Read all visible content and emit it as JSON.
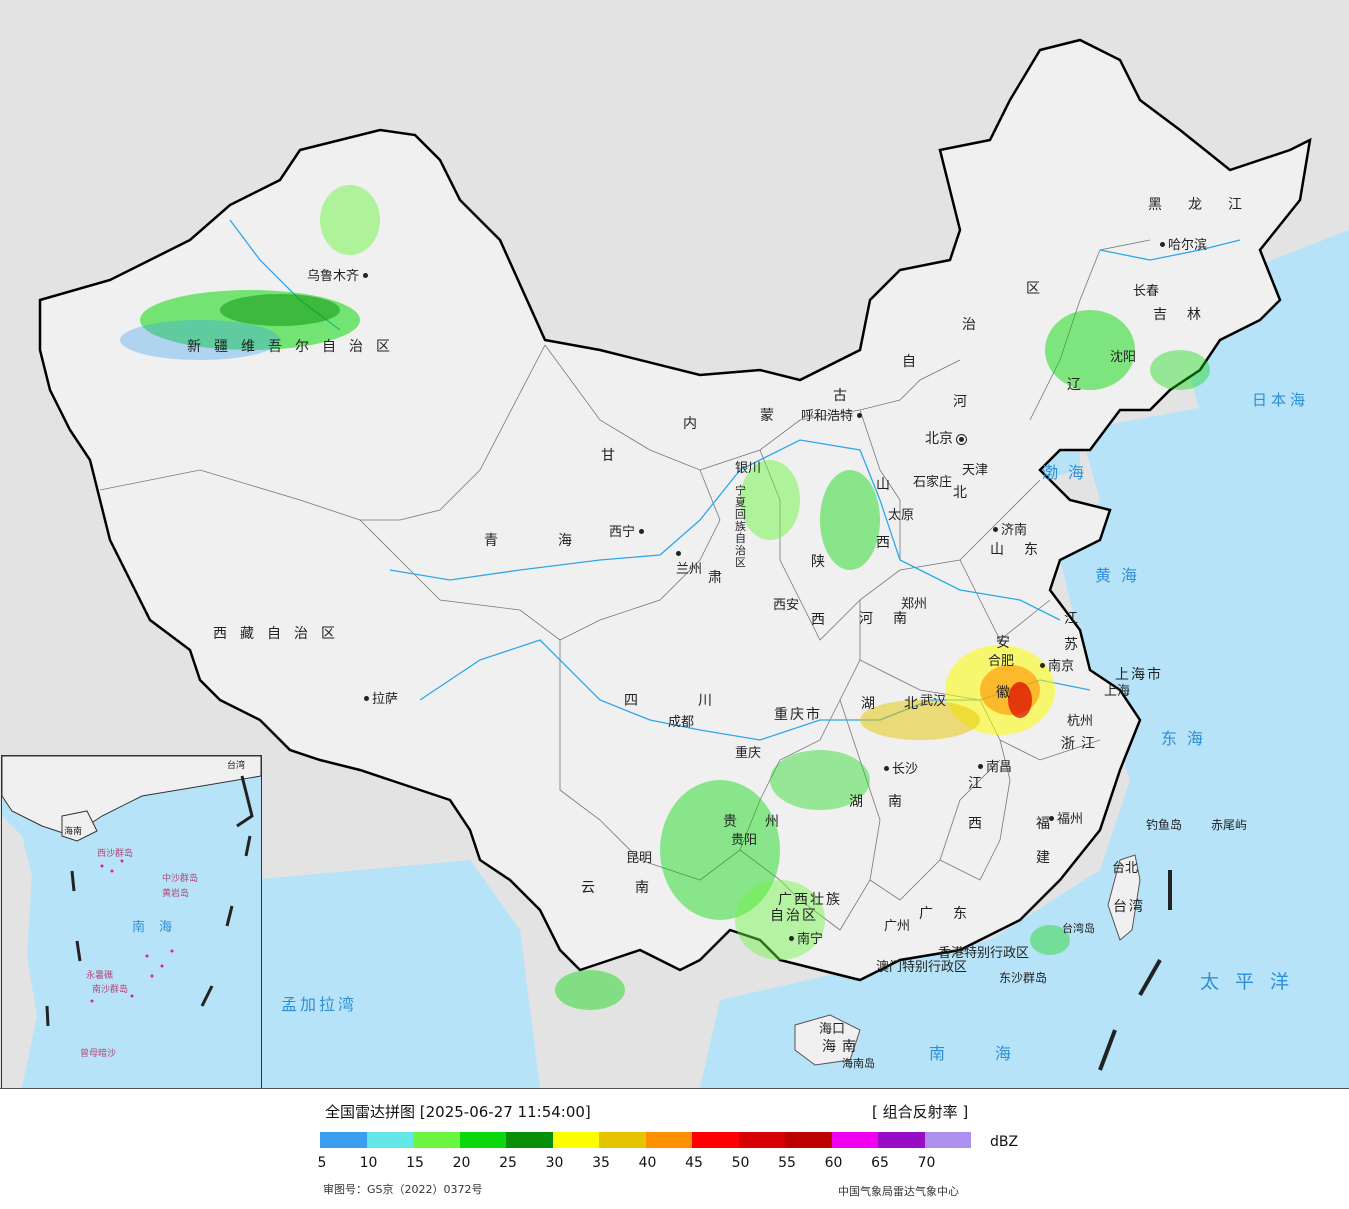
{
  "title": "全国雷达拼图 [2025-06-27 11:54:00]",
  "product": "[ 组合反射率 ]",
  "unit": "dBZ",
  "legend": {
    "colors": [
      "#3a9ef0",
      "#63e7ea",
      "#6cf541",
      "#0cd80c",
      "#079007",
      "#fdfd02",
      "#e6c400",
      "#fd8f00",
      "#fe0000",
      "#d80000",
      "#bb0000",
      "#f200f2",
      "#980cc6",
      "#ad8fef"
    ],
    "ticks": [
      "5",
      "10",
      "15",
      "20",
      "25",
      "30",
      "35",
      "40",
      "45",
      "50",
      "55",
      "60",
      "65",
      "70"
    ]
  },
  "review_number": "审图号：GS京（2022）0372号",
  "source": "中国气象局雷达气象中心",
  "colors": {
    "land": "#f0f0f0",
    "ocean": "#b6e3f7",
    "foreign": "#e3e3e3",
    "border": "#000000",
    "river": "#2ea7ea"
  },
  "provinces": {
    "xinjiang": "新疆维吾尔自治区",
    "xizang": "西藏自治区",
    "qinghai": "青海",
    "gansu": "甘",
    "neimenggu_1": "内",
    "neimenggu_2": "蒙",
    "neimenggu_3": "古",
    "neimenggu_4": "自",
    "neimenggu_5": "治",
    "neimenggu_6": "区",
    "heilongjiang": "黑龙江",
    "jilin": "吉林",
    "liaoning": "辽",
    "hebei_1": "河",
    "hebei_2": "北",
    "shanxi_1": "山",
    "shanxi_2": "西",
    "shaanxi_1": "陕",
    "shaanxi_2": "西",
    "shandong": "山东",
    "henan": "河南",
    "jiangsu_1": "江",
    "jiangsu_2": "苏",
    "anhui_1": "安",
    "anhui_2": "徽",
    "hubei_1": "湖",
    "hubei_2": "北",
    "sichuan": "四川",
    "chongqing": "重庆市",
    "guizhou_1": "贵",
    "guizhou_2": "州",
    "hunan_1": "湖",
    "hunan_2": "南",
    "jiangxi_1": "江",
    "jiangxi_2": "西",
    "zhejiang": "浙江",
    "fujian_1": "福",
    "fujian_2": "建",
    "yunnan": "云南",
    "guangxi_1": "广西壮族",
    "guangxi_2": "自治区",
    "guangdong": "广东",
    "hainan": "海南",
    "taiwan": "台湾",
    "ningxia": "宁夏回族自治区",
    "shanghai": "上海市",
    "tianjin": "天津",
    "gansu2": "肃"
  },
  "cities": {
    "urumqi": "乌鲁木齐",
    "lhasa": "拉萨",
    "xining": "西宁",
    "lanzhou": "兰州",
    "yinchuan": "银川",
    "hohhot": "呼和浩特",
    "beijing": "北京",
    "tianjin": "天津",
    "shijiazhuang": "石家庄",
    "taiyuan": "太原",
    "jinan": "济南",
    "zhengzhou": "郑州",
    "xian": "西安",
    "harbin": "哈尔滨",
    "changchun": "长春",
    "shenyang": "沈阳",
    "nanjing": "南京",
    "hefei": "合肥",
    "shanghai": "上海",
    "hangzhou": "杭州",
    "wuhan": "武汉",
    "chengdu": "成都",
    "chongqing": "重庆",
    "guiyang": "贵阳",
    "changsha": "长沙",
    "nanchang": "南昌",
    "fuzhou": "福州",
    "kunming": "昆明",
    "nanning": "南宁",
    "guangzhou": "广州",
    "haikou": "海口",
    "taibei": "台北",
    "hongkong": "香港特别行政区",
    "macao": "澳门特别行政区"
  },
  "seas": {
    "bohai": "渤海",
    "huanghai": "黄海",
    "donghai": "东海",
    "nanhai": "南海",
    "taipingyang": "太平洋",
    "ribenhai": "日本海",
    "mengjialawan": "孟加拉湾"
  },
  "islands": {
    "diaoyu": "钓鱼岛",
    "chiwei": "赤尾屿",
    "hainan_island": "海南岛",
    "taiwan_island": "台湾岛",
    "dongsha": "东沙群岛"
  },
  "inset": {
    "nanhai": "南海",
    "zhongsha": "中沙群岛",
    "huangyan": "黄岩岛",
    "yongshu": "永暑礁",
    "nansha": "南沙群岛",
    "zengmu": "曾母暗沙",
    "xisha": "西沙群岛",
    "hainan": "海南",
    "taiwan": "台湾"
  }
}
